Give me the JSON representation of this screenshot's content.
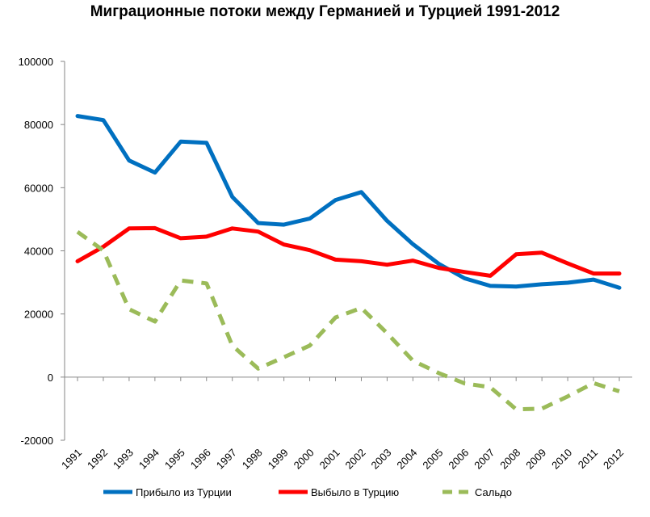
{
  "chart_data": {
    "type": "line",
    "title": "Миграционные потоки между Германией и Турцией 1991-2012",
    "xlabel": "",
    "ylabel": "",
    "categories": [
      "1991",
      "1992",
      "1993",
      "1994",
      "1995",
      "1996",
      "1997",
      "1998",
      "1999",
      "2000",
      "2001",
      "2002",
      "2003",
      "2004",
      "2005",
      "2006",
      "2007",
      "2008",
      "2009",
      "2010",
      "2011",
      "2012"
    ],
    "ylim": [
      -20000,
      100000
    ],
    "yticks": [
      -20000,
      0,
      20000,
      40000,
      60000,
      80000,
      100000
    ],
    "ytick_labels": [
      "-20000",
      "0",
      "20000",
      "40000",
      "60000",
      "80000",
      "100000"
    ],
    "grid": false,
    "legend_position": "bottom",
    "series": [
      {
        "name": "Прибыло из Турции",
        "color": "#0070C0",
        "style": "solid",
        "values": [
          82700,
          81400,
          68600,
          64800,
          74600,
          74200,
          57100,
          48800,
          48300,
          50200,
          56100,
          58600,
          49500,
          42100,
          35900,
          31300,
          28900,
          28700,
          29400,
          29900,
          30900,
          28300
        ]
      },
      {
        "name": "Выбыло в Турцию",
        "color": "#FF0000",
        "style": "solid",
        "values": [
          36700,
          41300,
          47100,
          47200,
          44000,
          44500,
          47100,
          46100,
          42000,
          40200,
          37200,
          36700,
          35600,
          36900,
          34600,
          33300,
          32100,
          38900,
          39400,
          36000,
          32800,
          32800
        ]
      },
      {
        "name": "Сальдо",
        "color": "#9BBB59",
        "style": "dashed",
        "values": [
          46000,
          40100,
          21500,
          17600,
          30600,
          29700,
          10000,
          2700,
          6300,
          10000,
          18900,
          21900,
          13900,
          5200,
          1300,
          -2000,
          -3200,
          -10200,
          -10000,
          -6100,
          -1900,
          -4500
        ]
      }
    ]
  }
}
